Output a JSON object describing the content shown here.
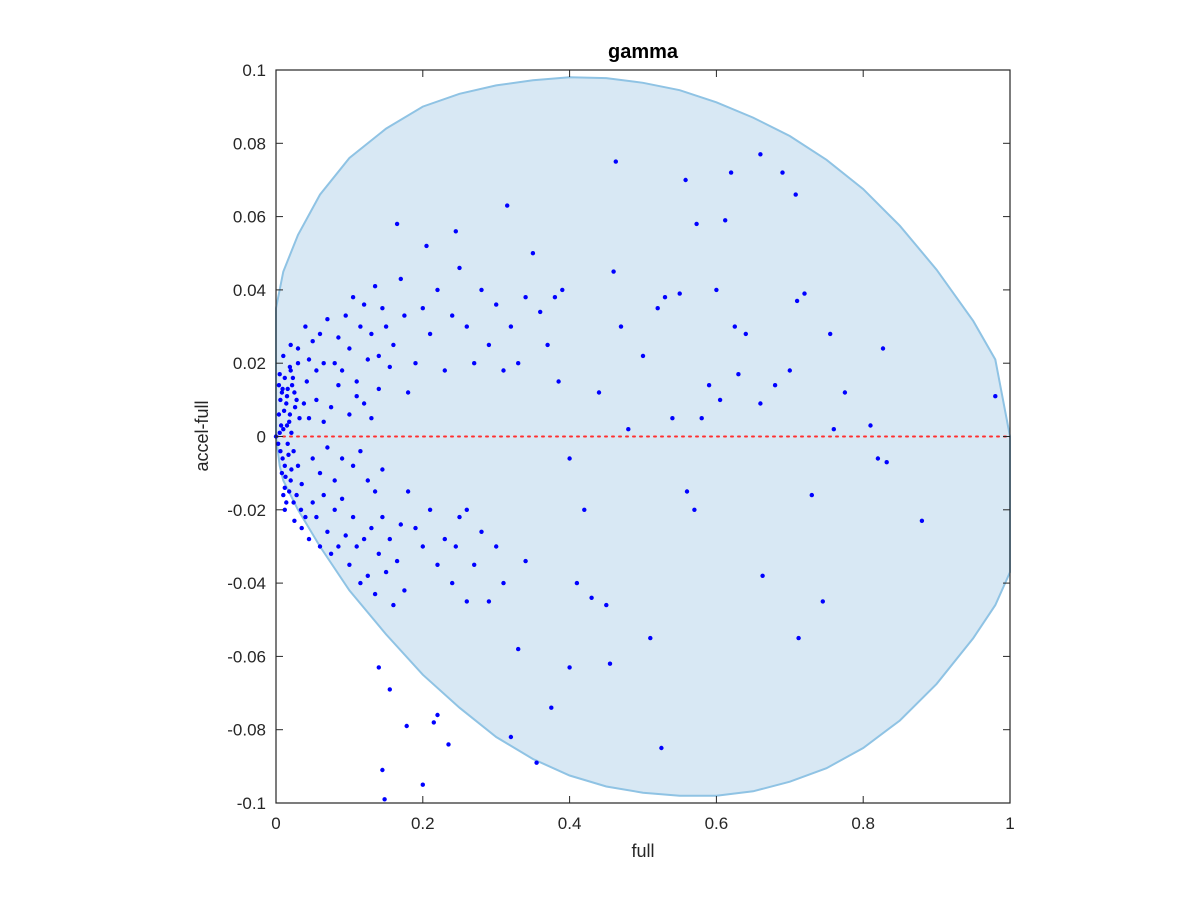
{
  "chart_data": {
    "type": "scatter",
    "title": "gamma",
    "xlabel": "full",
    "ylabel": "accel-full",
    "xlim": [
      0,
      1
    ],
    "ylim": [
      -0.1,
      0.1
    ],
    "xticks": [
      "0",
      "0.2",
      "0.4",
      "0.6",
      "0.8",
      "1"
    ],
    "xtick_values": [
      0,
      0.2,
      0.4,
      0.6,
      0.8,
      1
    ],
    "yticks": [
      "-0.1",
      "-0.08",
      "-0.06",
      "-0.04",
      "-0.02",
      "0",
      "0.02",
      "0.04",
      "0.06",
      "0.08",
      "0.1"
    ],
    "ytick_values": [
      -0.1,
      -0.08,
      -0.06,
      -0.04,
      -0.02,
      0,
      0.02,
      0.04,
      0.06,
      0.08,
      0.1
    ],
    "grid": false,
    "colors": {
      "points": "#0000ff",
      "region_fill": "#d8e8f4",
      "region_edge": "#8fc3e4",
      "zero_line": "#ff3030",
      "axes": "#262626"
    },
    "reference_line": {
      "y": 0,
      "style": "dotted"
    },
    "region": {
      "type": "shaded-boundary",
      "upper": [
        [
          0,
          0.035
        ],
        [
          0.01,
          0.045
        ],
        [
          0.03,
          0.055
        ],
        [
          0.06,
          0.066
        ],
        [
          0.1,
          0.076
        ],
        [
          0.15,
          0.084
        ],
        [
          0.2,
          0.09
        ],
        [
          0.25,
          0.0935
        ],
        [
          0.3,
          0.0958
        ],
        [
          0.35,
          0.0972
        ],
        [
          0.4,
          0.098
        ],
        [
          0.45,
          0.0978
        ],
        [
          0.5,
          0.0965
        ],
        [
          0.55,
          0.0945
        ],
        [
          0.6,
          0.0912
        ],
        [
          0.65,
          0.087
        ],
        [
          0.7,
          0.082
        ],
        [
          0.75,
          0.0755
        ],
        [
          0.8,
          0.0675
        ],
        [
          0.85,
          0.0575
        ],
        [
          0.9,
          0.0455
        ],
        [
          0.95,
          0.0315
        ],
        [
          0.98,
          0.021
        ],
        [
          1.0,
          0.0
        ]
      ],
      "lower": [
        [
          0,
          0.0
        ],
        [
          0.005,
          -0.008
        ],
        [
          0.01,
          -0.012
        ],
        [
          0.03,
          -0.02
        ],
        [
          0.06,
          -0.03
        ],
        [
          0.1,
          -0.042
        ],
        [
          0.15,
          -0.054
        ],
        [
          0.2,
          -0.065
        ],
        [
          0.25,
          -0.074
        ],
        [
          0.3,
          -0.082
        ],
        [
          0.35,
          -0.088
        ],
        [
          0.4,
          -0.0925
        ],
        [
          0.45,
          -0.0955
        ],
        [
          0.5,
          -0.0972
        ],
        [
          0.55,
          -0.098
        ],
        [
          0.6,
          -0.098
        ],
        [
          0.65,
          -0.0968
        ],
        [
          0.7,
          -0.0942
        ],
        [
          0.75,
          -0.0905
        ],
        [
          0.8,
          -0.085
        ],
        [
          0.85,
          -0.0775
        ],
        [
          0.9,
          -0.0675
        ],
        [
          0.95,
          -0.055
        ],
        [
          0.98,
          -0.046
        ],
        [
          1.0,
          -0.037
        ]
      ]
    },
    "series": [
      {
        "points": [
          [
            0.004,
            0.006
          ],
          [
            0.006,
            -0.004
          ],
          [
            0.008,
            0.012
          ],
          [
            0.01,
            0.002
          ],
          [
            0.012,
            -0.008
          ],
          [
            0.014,
            0.009
          ],
          [
            0.016,
            -0.002
          ],
          [
            0.018,
            0.004
          ],
          [
            0.02,
            -0.012
          ],
          [
            0.022,
            0.014
          ],
          [
            0.005,
            0.001
          ],
          [
            0.007,
            0.003
          ],
          [
            0.009,
            -0.006
          ],
          [
            0.011,
            0.007
          ],
          [
            0.013,
            -0.011
          ],
          [
            0.015,
            0.011
          ],
          [
            0.017,
            -0.005
          ],
          [
            0.019,
            0.006
          ],
          [
            0.021,
            -0.009
          ],
          [
            0.023,
            0.016
          ],
          [
            0.003,
            -0.002
          ],
          [
            0.006,
            0.01
          ],
          [
            0.009,
            0.013
          ],
          [
            0.012,
            -0.014
          ],
          [
            0.015,
            0.003
          ],
          [
            0.018,
            -0.015
          ],
          [
            0.021,
            0.001
          ],
          [
            0.024,
            -0.004
          ],
          [
            0.026,
            0.008
          ],
          [
            0.028,
            -0.016
          ],
          [
            0.004,
            0.014
          ],
          [
            0.008,
            -0.01
          ],
          [
            0.012,
            0.016
          ],
          [
            0.016,
            0.013
          ],
          [
            0.02,
            0.018
          ],
          [
            0.024,
            -0.018
          ],
          [
            0.028,
            0.01
          ],
          [
            0.03,
            -0.008
          ],
          [
            0.032,
            0.005
          ],
          [
            0.034,
            -0.02
          ],
          [
            0.005,
            0.017
          ],
          [
            0.01,
            -0.016
          ],
          [
            0.014,
            -0.018
          ],
          [
            0.019,
            0.019
          ],
          [
            0.025,
            0.012
          ],
          [
            0.03,
            0.02
          ],
          [
            0.035,
            -0.013
          ],
          [
            0.038,
            0.009
          ],
          [
            0.04,
            -0.022
          ],
          [
            0.042,
            0.015
          ],
          [
            0.01,
            0.022
          ],
          [
            0.02,
            0.025
          ],
          [
            0.03,
            0.024
          ],
          [
            0.04,
            0.03
          ],
          [
            0.045,
            0.021
          ],
          [
            0.05,
            0.026
          ],
          [
            0.055,
            0.018
          ],
          [
            0.06,
            0.028
          ],
          [
            0.065,
            0.02
          ],
          [
            0.07,
            0.032
          ],
          [
            0.012,
            -0.02
          ],
          [
            0.025,
            -0.023
          ],
          [
            0.035,
            -0.025
          ],
          [
            0.045,
            -0.028
          ],
          [
            0.05,
            -0.018
          ],
          [
            0.055,
            -0.022
          ],
          [
            0.06,
            -0.03
          ],
          [
            0.065,
            -0.016
          ],
          [
            0.07,
            -0.026
          ],
          [
            0.075,
            -0.032
          ],
          [
            0.045,
            0.005
          ],
          [
            0.05,
            -0.006
          ],
          [
            0.055,
            0.01
          ],
          [
            0.06,
            -0.01
          ],
          [
            0.065,
            0.004
          ],
          [
            0.07,
            -0.003
          ],
          [
            0.075,
            0.008
          ],
          [
            0.08,
            -0.012
          ],
          [
            0.085,
            0.014
          ],
          [
            0.09,
            -0.006
          ],
          [
            0.08,
            0.02
          ],
          [
            0.085,
            0.027
          ],
          [
            0.09,
            0.018
          ],
          [
            0.095,
            0.033
          ],
          [
            0.1,
            0.024
          ],
          [
            0.105,
            0.038
          ],
          [
            0.11,
            0.015
          ],
          [
            0.115,
            0.03
          ],
          [
            0.12,
            0.036
          ],
          [
            0.125,
            0.021
          ],
          [
            0.08,
            -0.02
          ],
          [
            0.085,
            -0.03
          ],
          [
            0.09,
            -0.017
          ],
          [
            0.095,
            -0.027
          ],
          [
            0.1,
            -0.035
          ],
          [
            0.105,
            -0.022
          ],
          [
            0.11,
            -0.03
          ],
          [
            0.115,
            -0.04
          ],
          [
            0.12,
            -0.028
          ],
          [
            0.125,
            -0.038
          ],
          [
            0.1,
            0.006
          ],
          [
            0.105,
            -0.008
          ],
          [
            0.11,
            0.011
          ],
          [
            0.115,
            -0.004
          ],
          [
            0.12,
            0.009
          ],
          [
            0.125,
            -0.012
          ],
          [
            0.13,
            0.005
          ],
          [
            0.135,
            -0.015
          ],
          [
            0.14,
            0.013
          ],
          [
            0.145,
            -0.009
          ],
          [
            0.13,
            0.028
          ],
          [
            0.135,
            0.041
          ],
          [
            0.14,
            0.022
          ],
          [
            0.145,
            0.035
          ],
          [
            0.15,
            0.03
          ],
          [
            0.155,
            0.019
          ],
          [
            0.16,
            0.025
          ],
          [
            0.165,
            0.058
          ],
          [
            0.17,
            0.043
          ],
          [
            0.175,
            0.033
          ],
          [
            0.13,
            -0.025
          ],
          [
            0.135,
            -0.043
          ],
          [
            0.14,
            -0.032
          ],
          [
            0.145,
            -0.022
          ],
          [
            0.15,
            -0.037
          ],
          [
            0.155,
            -0.028
          ],
          [
            0.16,
            -0.046
          ],
          [
            0.165,
            -0.034
          ],
          [
            0.17,
            -0.024
          ],
          [
            0.175,
            -0.042
          ],
          [
            0.18,
            0.012
          ],
          [
            0.19,
            0.02
          ],
          [
            0.2,
            0.035
          ],
          [
            0.205,
            0.052
          ],
          [
            0.21,
            0.028
          ],
          [
            0.22,
            0.04
          ],
          [
            0.23,
            0.018
          ],
          [
            0.24,
            0.033
          ],
          [
            0.245,
            0.056
          ],
          [
            0.25,
            0.046
          ],
          [
            0.18,
            -0.015
          ],
          [
            0.19,
            -0.025
          ],
          [
            0.2,
            -0.03
          ],
          [
            0.21,
            -0.02
          ],
          [
            0.22,
            -0.035
          ],
          [
            0.23,
            -0.028
          ],
          [
            0.24,
            -0.04
          ],
          [
            0.245,
            -0.03
          ],
          [
            0.25,
            -0.022
          ],
          [
            0.26,
            -0.045
          ],
          [
            0.26,
            0.03
          ],
          [
            0.27,
            0.02
          ],
          [
            0.28,
            0.04
          ],
          [
            0.29,
            0.025
          ],
          [
            0.3,
            0.036
          ],
          [
            0.31,
            0.018
          ],
          [
            0.315,
            0.063
          ],
          [
            0.32,
            0.03
          ],
          [
            0.33,
            0.02
          ],
          [
            0.34,
            0.038
          ],
          [
            0.26,
            -0.02
          ],
          [
            0.27,
            -0.035
          ],
          [
            0.28,
            -0.026
          ],
          [
            0.29,
            -0.045
          ],
          [
            0.3,
            -0.03
          ],
          [
            0.31,
            -0.04
          ],
          [
            0.32,
            -0.082
          ],
          [
            0.33,
            -0.058
          ],
          [
            0.34,
            -0.034
          ],
          [
            0.355,
            -0.089
          ],
          [
            0.35,
            0.05
          ],
          [
            0.36,
            0.034
          ],
          [
            0.37,
            0.025
          ],
          [
            0.38,
            0.038
          ],
          [
            0.385,
            0.015
          ],
          [
            0.39,
            0.04
          ],
          [
            0.4,
            -0.006
          ],
          [
            0.4,
            -0.063
          ],
          [
            0.41,
            -0.04
          ],
          [
            0.42,
            -0.02
          ],
          [
            0.43,
            -0.044
          ],
          [
            0.44,
            0.012
          ],
          [
            0.45,
            -0.046
          ],
          [
            0.455,
            -0.062
          ],
          [
            0.46,
            0.045
          ],
          [
            0.463,
            0.075
          ],
          [
            0.47,
            0.03
          ],
          [
            0.48,
            0.002
          ],
          [
            0.5,
            0.022
          ],
          [
            0.51,
            -0.055
          ],
          [
            0.52,
            0.035
          ],
          [
            0.525,
            -0.085
          ],
          [
            0.53,
            0.038
          ],
          [
            0.54,
            0.005
          ],
          [
            0.55,
            0.039
          ],
          [
            0.558,
            0.07
          ],
          [
            0.56,
            -0.015
          ],
          [
            0.57,
            -0.02
          ],
          [
            0.573,
            0.058
          ],
          [
            0.58,
            0.005
          ],
          [
            0.59,
            0.014
          ],
          [
            0.6,
            0.04
          ],
          [
            0.605,
            0.01
          ],
          [
            0.612,
            0.059
          ],
          [
            0.62,
            0.072
          ],
          [
            0.625,
            0.03
          ],
          [
            0.63,
            0.017
          ],
          [
            0.64,
            0.028
          ],
          [
            0.66,
            0.077
          ],
          [
            0.663,
            -0.038
          ],
          [
            0.66,
            0.009
          ],
          [
            0.68,
            0.014
          ],
          [
            0.69,
            0.072
          ],
          [
            0.7,
            0.018
          ],
          [
            0.708,
            0.066
          ],
          [
            0.71,
            0.037
          ],
          [
            0.712,
            -0.055
          ],
          [
            0.72,
            0.039
          ],
          [
            0.73,
            -0.016
          ],
          [
            0.745,
            -0.045
          ],
          [
            0.755,
            0.028
          ],
          [
            0.76,
            0.002
          ],
          [
            0.775,
            0.012
          ],
          [
            0.81,
            0.003
          ],
          [
            0.82,
            -0.006
          ],
          [
            0.827,
            0.024
          ],
          [
            0.832,
            -0.007
          ],
          [
            0.88,
            -0.023
          ],
          [
            0.98,
            0.011
          ],
          [
            0.0,
            0.0
          ],
          [
            0.14,
            -0.063
          ],
          [
            0.145,
            -0.091
          ],
          [
            0.148,
            -0.099
          ],
          [
            0.155,
            -0.069
          ],
          [
            0.178,
            -0.079
          ],
          [
            0.2,
            -0.095
          ],
          [
            0.215,
            -0.078
          ],
          [
            0.235,
            -0.084
          ],
          [
            0.22,
            -0.076
          ],
          [
            0.375,
            -0.074
          ]
        ]
      }
    ]
  }
}
